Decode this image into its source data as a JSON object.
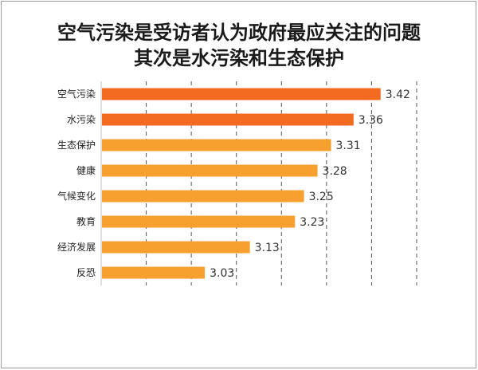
{
  "chart_data": {
    "type": "bar",
    "orientation": "horizontal",
    "title_lines": [
      "空气污染是受访者认为政府最应关注的问题",
      "其次是水污染和生态保护"
    ],
    "categories": [
      "空气污染",
      "水污染",
      "生态保护",
      "健康",
      "气候变化",
      "教育",
      "经济发展",
      "反恐"
    ],
    "values": [
      3.42,
      3.36,
      3.31,
      3.28,
      3.25,
      3.23,
      3.13,
      3.03
    ],
    "value_labels": [
      "3.42",
      "3.36",
      "3.31",
      "3.28",
      "3.25",
      "3.23",
      "3.13",
      "3.03"
    ],
    "bar_colors": [
      "#f26b21",
      "#f26b21",
      "#f6a030",
      "#f6a030",
      "#f6a030",
      "#f6a030",
      "#f6a030",
      "#f6a030"
    ],
    "xlim": [
      2.8,
      3.5
    ],
    "grid": "vertical dashed",
    "legend": "none"
  }
}
